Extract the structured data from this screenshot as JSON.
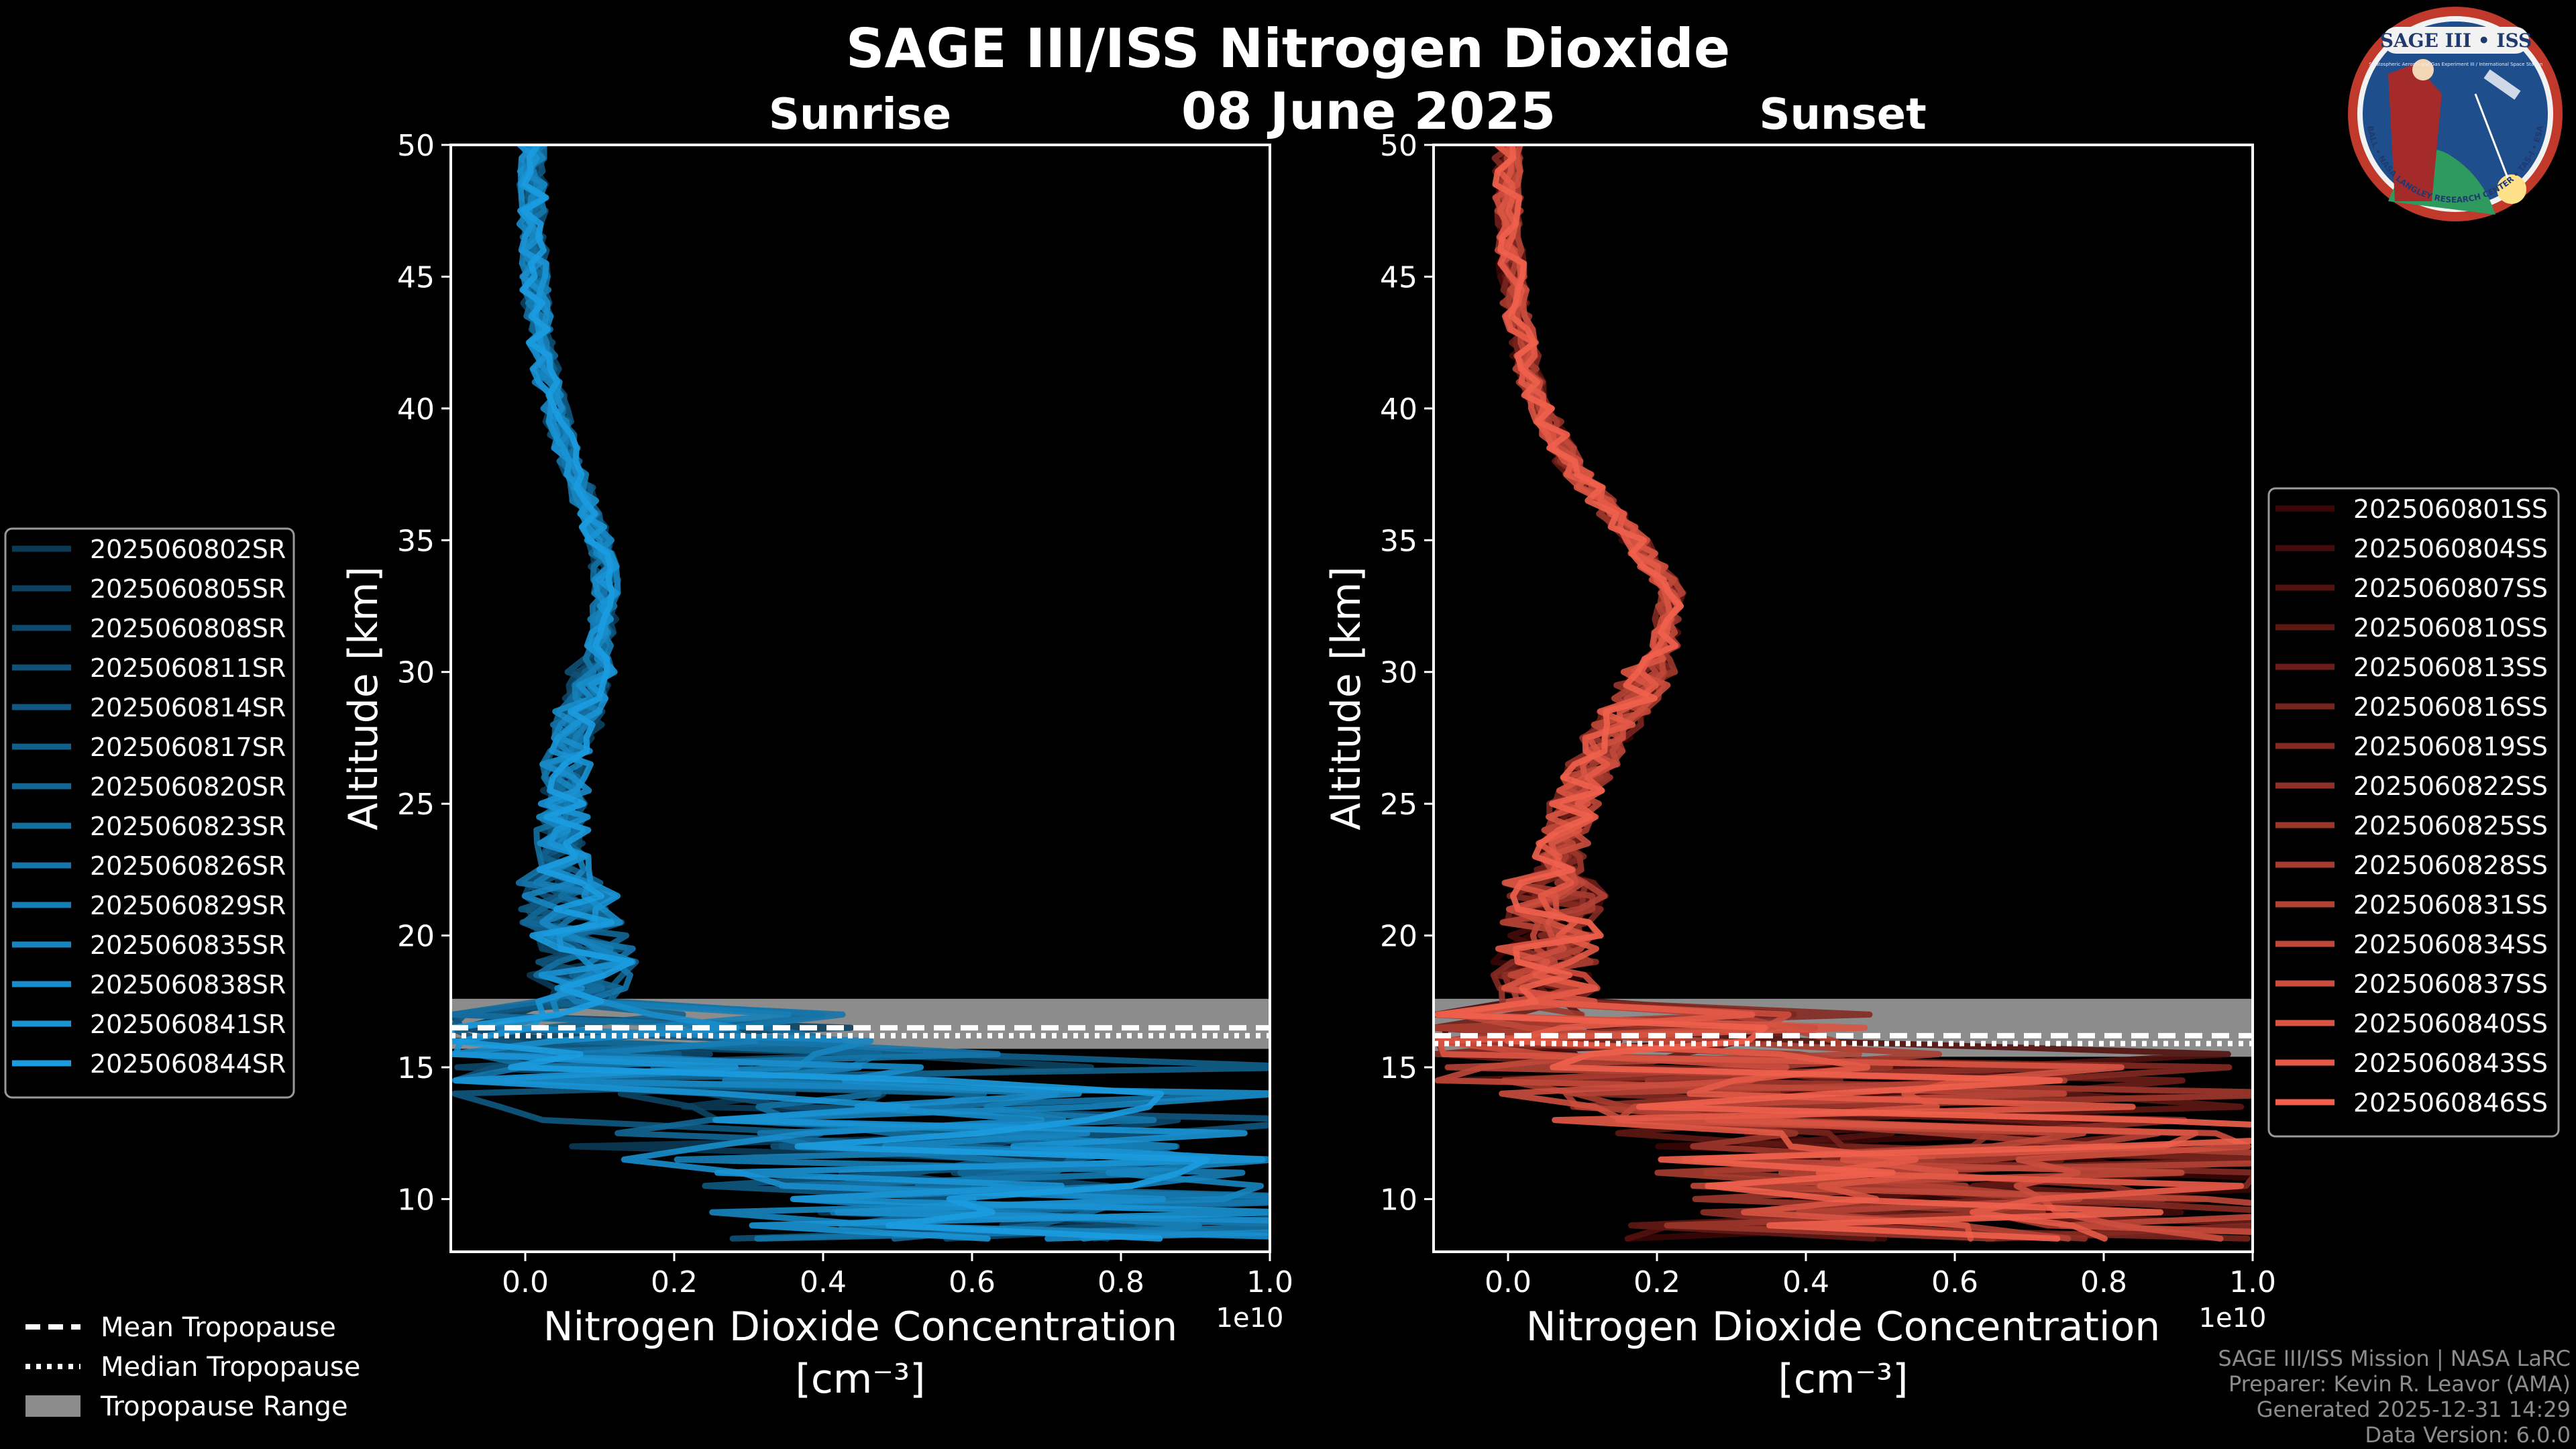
{
  "title": "SAGE III/ISS Nitrogen Dioxide",
  "subtitle": "08 June 2025",
  "logo": {
    "top_text": "SAGE III • ISS",
    "sub_text": "Stratospheric Aerosol and Gas Experiment III / International Space Station",
    "ring_text": "BALL • NASA LANGLEY RESEARCH CENTER • TAS-I • ESA"
  },
  "credits": [
    "SAGE III/ISS Mission | NASA LaRC",
    "Preparer: Kevin R. Leavor (AMA)",
    "Generated 2025-12-31 14:29",
    "Data Version: 6.0.0"
  ],
  "tropopause_legend": [
    {
      "label": "Mean Tropopause",
      "style": "dashed"
    },
    {
      "label": "Median Tropopause",
      "style": "dotted"
    },
    {
      "label": "Tropopause Range",
      "style": "band"
    }
  ],
  "chart_data": [
    {
      "type": "line",
      "panel": "sunrise",
      "title": "Sunrise",
      "xlabel": "Nitrogen Dioxide Concentration",
      "xunit": "[cm⁻³]",
      "offset_label": "1e10",
      "ylabel": "Altitude [km]",
      "xlim": [
        -0.1,
        1.0
      ],
      "ylim": [
        8,
        50
      ],
      "xticks": [
        0.0,
        0.2,
        0.4,
        0.6,
        0.8,
        1.0
      ],
      "xtick_labels": [
        "0.0",
        "0.2",
        "0.4",
        "0.6",
        "0.8",
        "1.0"
      ],
      "yticks": [
        10,
        15,
        20,
        25,
        30,
        35,
        40,
        45,
        50
      ],
      "color_dark": "#0b3a57",
      "color_light": "#1b9ce0",
      "profile": {
        "altitude": [
          50,
          47,
          44,
          41,
          38,
          35,
          33,
          31,
          29,
          27,
          25,
          23,
          21,
          19,
          17,
          16,
          15,
          14,
          13,
          12,
          11,
          10,
          9
        ],
        "no2": [
          0.01,
          0.01,
          0.015,
          0.03,
          0.06,
          0.1,
          0.11,
          0.1,
          0.08,
          0.06,
          0.05,
          0.05,
          0.06,
          0.08,
          0.06,
          0.05,
          0.2,
          0.35,
          0.45,
          0.5,
          0.6,
          0.65,
          0.7
        ]
      },
      "tropopause": {
        "mean": 16.5,
        "median": 16.2,
        "range": [
          15.7,
          17.6
        ]
      },
      "legend_position": "left",
      "series": [
        {
          "name": "2025060802SR"
        },
        {
          "name": "2025060805SR"
        },
        {
          "name": "2025060808SR"
        },
        {
          "name": "2025060811SR"
        },
        {
          "name": "2025060814SR"
        },
        {
          "name": "2025060817SR"
        },
        {
          "name": "2025060820SR"
        },
        {
          "name": "2025060823SR"
        },
        {
          "name": "2025060826SR"
        },
        {
          "name": "2025060829SR"
        },
        {
          "name": "2025060835SR"
        },
        {
          "name": "2025060838SR"
        },
        {
          "name": "2025060841SR"
        },
        {
          "name": "2025060844SR"
        }
      ]
    },
    {
      "type": "line",
      "panel": "sunset",
      "title": "Sunset",
      "xlabel": "Nitrogen Dioxide Concentration",
      "xunit": "[cm⁻³]",
      "offset_label": "1e10",
      "ylabel": "Altitude [km]",
      "xlim": [
        -0.1,
        1.0
      ],
      "ylim": [
        8,
        50
      ],
      "xticks": [
        0.0,
        0.2,
        0.4,
        0.6,
        0.8,
        1.0
      ],
      "xtick_labels": [
        "0.0",
        "0.2",
        "0.4",
        "0.6",
        "0.8",
        "1.0"
      ],
      "yticks": [
        10,
        15,
        20,
        25,
        30,
        35,
        40,
        45,
        50
      ],
      "color_dark": "#3a0606",
      "color_light": "#f0604c",
      "profile": {
        "altitude": [
          50,
          47,
          44,
          41,
          38,
          35,
          33,
          31,
          29,
          27,
          25,
          23,
          21,
          19,
          17,
          16,
          15,
          14,
          13,
          12,
          11,
          10,
          9
        ],
        "no2": [
          0.0,
          0.0,
          0.01,
          0.03,
          0.08,
          0.17,
          0.22,
          0.21,
          0.17,
          0.12,
          0.09,
          0.07,
          0.06,
          0.05,
          0.05,
          0.05,
          0.25,
          0.4,
          0.5,
          0.55,
          0.6,
          0.6,
          0.6
        ]
      },
      "tropopause": {
        "mean": 16.2,
        "median": 15.9,
        "range": [
          15.4,
          17.6
        ]
      },
      "legend_position": "right",
      "series": [
        {
          "name": "2025060801SS"
        },
        {
          "name": "2025060804SS"
        },
        {
          "name": "2025060807SS"
        },
        {
          "name": "2025060810SS"
        },
        {
          "name": "2025060813SS"
        },
        {
          "name": "2025060816SS"
        },
        {
          "name": "2025060819SS"
        },
        {
          "name": "2025060822SS"
        },
        {
          "name": "2025060825SS"
        },
        {
          "name": "2025060828SS"
        },
        {
          "name": "2025060831SS"
        },
        {
          "name": "2025060834SS"
        },
        {
          "name": "2025060837SS"
        },
        {
          "name": "2025060840SS"
        },
        {
          "name": "2025060843SS"
        },
        {
          "name": "2025060846SS"
        }
      ]
    }
  ]
}
